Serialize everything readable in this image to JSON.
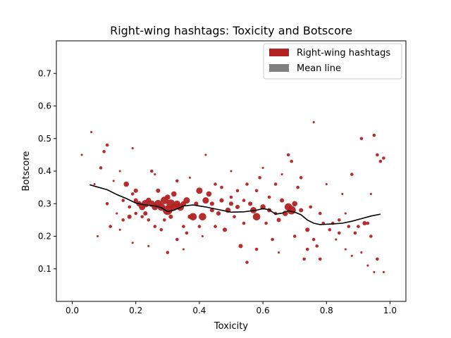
{
  "chart_data": {
    "type": "scatter",
    "title": "Right-wing hashtags: Toxicity and Botscore",
    "xlabel": "Toxicity",
    "ylabel": "Botscore",
    "xlim": [
      -0.05,
      1.05
    ],
    "ylim": [
      0.0,
      0.8
    ],
    "xticks": [
      0.0,
      0.2,
      0.4,
      0.6,
      0.8,
      1.0
    ],
    "xtick_labels": [
      "0.0",
      "0.2",
      "0.4",
      "0.6",
      "0.8",
      "1.0"
    ],
    "yticks": [
      0.1,
      0.2,
      0.3,
      0.4,
      0.5,
      0.6,
      0.7
    ],
    "ytick_labels": [
      "0.1",
      "0.2",
      "0.3",
      "0.4",
      "0.5",
      "0.6",
      "0.7"
    ],
    "grid": false,
    "legend_position": "top-right",
    "legend": [
      {
        "label": "Right-wing hashtags",
        "color": "#b22222"
      },
      {
        "label": "Mean line",
        "color": "#808080"
      }
    ],
    "series": [
      {
        "kind": "scatter",
        "color": "#b22222",
        "points": [
          {
            "x": 0.06,
            "y": 0.52,
            "s": 1
          },
          {
            "x": 0.1,
            "y": 0.46,
            "s": 2
          },
          {
            "x": 0.11,
            "y": 0.48,
            "s": 2
          },
          {
            "x": 0.07,
            "y": 0.36,
            "s": 1
          },
          {
            "x": 0.09,
            "y": 0.41,
            "s": 2
          },
          {
            "x": 0.08,
            "y": 0.2,
            "s": 1
          },
          {
            "x": 0.03,
            "y": 0.45,
            "s": 1
          },
          {
            "x": 0.11,
            "y": 0.3,
            "s": 2
          },
          {
            "x": 0.12,
            "y": 0.23,
            "s": 2
          },
          {
            "x": 0.13,
            "y": 0.37,
            "s": 1
          },
          {
            "x": 0.14,
            "y": 0.27,
            "s": 1
          },
          {
            "x": 0.15,
            "y": 0.4,
            "s": 1
          },
          {
            "x": 0.15,
            "y": 0.22,
            "s": 1
          },
          {
            "x": 0.16,
            "y": 0.31,
            "s": 2
          },
          {
            "x": 0.17,
            "y": 0.36,
            "s": 4
          },
          {
            "x": 0.18,
            "y": 0.29,
            "s": 2
          },
          {
            "x": 0.18,
            "y": 0.26,
            "s": 3
          },
          {
            "x": 0.19,
            "y": 0.47,
            "s": 1
          },
          {
            "x": 0.19,
            "y": 0.33,
            "s": 2
          },
          {
            "x": 0.2,
            "y": 0.31,
            "s": 3
          },
          {
            "x": 0.2,
            "y": 0.34,
            "s": 3
          },
          {
            "x": 0.21,
            "y": 0.3,
            "s": 4
          },
          {
            "x": 0.22,
            "y": 0.29,
            "s": 5
          },
          {
            "x": 0.23,
            "y": 0.3,
            "s": 6
          },
          {
            "x": 0.23,
            "y": 0.27,
            "s": 3
          },
          {
            "x": 0.24,
            "y": 0.31,
            "s": 4
          },
          {
            "x": 0.24,
            "y": 0.25,
            "s": 2
          },
          {
            "x": 0.25,
            "y": 0.3,
            "s": 5
          },
          {
            "x": 0.25,
            "y": 0.4,
            "s": 2
          },
          {
            "x": 0.26,
            "y": 0.29,
            "s": 5
          },
          {
            "x": 0.27,
            "y": 0.3,
            "s": 6
          },
          {
            "x": 0.27,
            "y": 0.34,
            "s": 3
          },
          {
            "x": 0.28,
            "y": 0.29,
            "s": 6
          },
          {
            "x": 0.28,
            "y": 0.22,
            "s": 2
          },
          {
            "x": 0.29,
            "y": 0.31,
            "s": 6
          },
          {
            "x": 0.3,
            "y": 0.28,
            "s": 8
          },
          {
            "x": 0.3,
            "y": 0.32,
            "s": 4
          },
          {
            "x": 0.31,
            "y": 0.3,
            "s": 7
          },
          {
            "x": 0.31,
            "y": 0.26,
            "s": 3
          },
          {
            "x": 0.32,
            "y": 0.29,
            "s": 6
          },
          {
            "x": 0.32,
            "y": 0.33,
            "s": 4
          },
          {
            "x": 0.33,
            "y": 0.3,
            "s": 5
          },
          {
            "x": 0.33,
            "y": 0.19,
            "s": 2
          },
          {
            "x": 0.34,
            "y": 0.29,
            "s": 6
          },
          {
            "x": 0.35,
            "y": 0.3,
            "s": 4
          },
          {
            "x": 0.35,
            "y": 0.23,
            "s": 2
          },
          {
            "x": 0.36,
            "y": 0.31,
            "s": 5
          },
          {
            "x": 0.37,
            "y": 0.26,
            "s": 3
          },
          {
            "x": 0.38,
            "y": 0.26,
            "s": 6
          },
          {
            "x": 0.39,
            "y": 0.3,
            "s": 3
          },
          {
            "x": 0.4,
            "y": 0.34,
            "s": 5
          },
          {
            "x": 0.41,
            "y": 0.26,
            "s": 6
          },
          {
            "x": 0.42,
            "y": 0.31,
            "s": 5
          },
          {
            "x": 0.42,
            "y": 0.45,
            "s": 1
          },
          {
            "x": 0.43,
            "y": 0.33,
            "s": 4
          },
          {
            "x": 0.44,
            "y": 0.3,
            "s": 3
          },
          {
            "x": 0.45,
            "y": 0.23,
            "s": 2
          },
          {
            "x": 0.46,
            "y": 0.27,
            "s": 3
          },
          {
            "x": 0.47,
            "y": 0.31,
            "s": 3
          },
          {
            "x": 0.48,
            "y": 0.22,
            "s": 3
          },
          {
            "x": 0.49,
            "y": 0.28,
            "s": 4
          },
          {
            "x": 0.5,
            "y": 0.32,
            "s": 2
          },
          {
            "x": 0.5,
            "y": 0.4,
            "s": 1
          },
          {
            "x": 0.51,
            "y": 0.26,
            "s": 2
          },
          {
            "x": 0.52,
            "y": 0.29,
            "s": 3
          },
          {
            "x": 0.53,
            "y": 0.17,
            "s": 3
          },
          {
            "x": 0.54,
            "y": 0.31,
            "s": 2
          },
          {
            "x": 0.55,
            "y": 0.36,
            "s": 2
          },
          {
            "x": 0.56,
            "y": 0.3,
            "s": 3
          },
          {
            "x": 0.57,
            "y": 0.28,
            "s": 5
          },
          {
            "x": 0.58,
            "y": 0.26,
            "s": 6
          },
          {
            "x": 0.59,
            "y": 0.38,
            "s": 2
          },
          {
            "x": 0.6,
            "y": 0.29,
            "s": 4
          },
          {
            "x": 0.61,
            "y": 0.24,
            "s": 2
          },
          {
            "x": 0.62,
            "y": 0.32,
            "s": 2
          },
          {
            "x": 0.63,
            "y": 0.19,
            "s": 2
          },
          {
            "x": 0.64,
            "y": 0.36,
            "s": 2
          },
          {
            "x": 0.65,
            "y": 0.25,
            "s": 3
          },
          {
            "x": 0.66,
            "y": 0.31,
            "s": 3
          },
          {
            "x": 0.67,
            "y": 0.27,
            "s": 4
          },
          {
            "x": 0.68,
            "y": 0.29,
            "s": 6
          },
          {
            "x": 0.69,
            "y": 0.28,
            "s": 7
          },
          {
            "x": 0.7,
            "y": 0.3,
            "s": 4
          },
          {
            "x": 0.68,
            "y": 0.45,
            "s": 2
          },
          {
            "x": 0.69,
            "y": 0.43,
            "s": 2
          },
          {
            "x": 0.71,
            "y": 0.35,
            "s": 2
          },
          {
            "x": 0.72,
            "y": 0.28,
            "s": 3
          },
          {
            "x": 0.73,
            "y": 0.13,
            "s": 2
          },
          {
            "x": 0.74,
            "y": 0.22,
            "s": 3
          },
          {
            "x": 0.75,
            "y": 0.29,
            "s": 2
          },
          {
            "x": 0.76,
            "y": 0.55,
            "s": 1
          },
          {
            "x": 0.77,
            "y": 0.17,
            "s": 2
          },
          {
            "x": 0.78,
            "y": 0.13,
            "s": 2
          },
          {
            "x": 0.79,
            "y": 0.24,
            "s": 2
          },
          {
            "x": 0.8,
            "y": 0.36,
            "s": 1
          },
          {
            "x": 0.81,
            "y": 0.22,
            "s": 2
          },
          {
            "x": 0.82,
            "y": 0.24,
            "s": 2
          },
          {
            "x": 0.83,
            "y": 0.19,
            "s": 1
          },
          {
            "x": 0.84,
            "y": 0.25,
            "s": 2
          },
          {
            "x": 0.85,
            "y": 0.33,
            "s": 1
          },
          {
            "x": 0.86,
            "y": 0.16,
            "s": 1
          },
          {
            "x": 0.87,
            "y": 0.23,
            "s": 2
          },
          {
            "x": 0.88,
            "y": 0.39,
            "s": 2
          },
          {
            "x": 0.89,
            "y": 0.21,
            "s": 2
          },
          {
            "x": 0.9,
            "y": 0.23,
            "s": 2
          },
          {
            "x": 0.91,
            "y": 0.5,
            "s": 2
          },
          {
            "x": 0.92,
            "y": 0.24,
            "s": 3
          },
          {
            "x": 0.93,
            "y": 0.24,
            "s": 2
          },
          {
            "x": 0.94,
            "y": 0.33,
            "s": 1
          },
          {
            "x": 0.95,
            "y": 0.51,
            "s": 2
          },
          {
            "x": 0.96,
            "y": 0.45,
            "s": 2
          },
          {
            "x": 0.97,
            "y": 0.43,
            "s": 2
          },
          {
            "x": 0.98,
            "y": 0.44,
            "s": 2
          },
          {
            "x": 0.96,
            "y": 0.13,
            "s": 2
          },
          {
            "x": 0.95,
            "y": 0.09,
            "s": 1
          },
          {
            "x": 0.93,
            "y": 0.11,
            "s": 1
          },
          {
            "x": 0.91,
            "y": 0.15,
            "s": 1
          },
          {
            "x": 0.94,
            "y": 0.2,
            "s": 2
          },
          {
            "x": 0.98,
            "y": 0.09,
            "s": 1
          },
          {
            "x": 0.19,
            "y": 0.18,
            "s": 1
          },
          {
            "x": 0.24,
            "y": 0.17,
            "s": 1
          },
          {
            "x": 0.3,
            "y": 0.15,
            "s": 2
          },
          {
            "x": 0.35,
            "y": 0.16,
            "s": 1
          },
          {
            "x": 0.41,
            "y": 0.2,
            "s": 1
          },
          {
            "x": 0.55,
            "y": 0.12,
            "s": 2
          },
          {
            "x": 0.58,
            "y": 0.16,
            "s": 2
          },
          {
            "x": 0.65,
            "y": 0.15,
            "s": 1
          },
          {
            "x": 0.74,
            "y": 0.16,
            "s": 2
          },
          {
            "x": 0.72,
            "y": 0.38,
            "s": 2
          },
          {
            "x": 0.26,
            "y": 0.39,
            "s": 1
          },
          {
            "x": 0.33,
            "y": 0.37,
            "s": 2
          },
          {
            "x": 0.37,
            "y": 0.38,
            "s": 1
          },
          {
            "x": 0.45,
            "y": 0.36,
            "s": 2
          },
          {
            "x": 0.6,
            "y": 0.41,
            "s": 1
          },
          {
            "x": 0.66,
            "y": 0.39,
            "s": 1
          },
          {
            "x": 0.16,
            "y": 0.25,
            "s": 2
          },
          {
            "x": 0.2,
            "y": 0.27,
            "s": 2
          },
          {
            "x": 0.22,
            "y": 0.26,
            "s": 2
          },
          {
            "x": 0.44,
            "y": 0.28,
            "s": 3
          },
          {
            "x": 0.5,
            "y": 0.3,
            "s": 3
          },
          {
            "x": 0.52,
            "y": 0.34,
            "s": 2
          },
          {
            "x": 0.62,
            "y": 0.28,
            "s": 3
          },
          {
            "x": 0.64,
            "y": 0.27,
            "s": 2
          },
          {
            "x": 0.78,
            "y": 0.27,
            "s": 2
          },
          {
            "x": 0.84,
            "y": 0.21,
            "s": 2
          },
          {
            "x": 0.86,
            "y": 0.27,
            "s": 1
          },
          {
            "x": 0.54,
            "y": 0.24,
            "s": 2
          },
          {
            "x": 0.58,
            "y": 0.34,
            "s": 2
          },
          {
            "x": 0.26,
            "y": 0.23,
            "s": 2
          },
          {
            "x": 0.29,
            "y": 0.25,
            "s": 2
          },
          {
            "x": 0.36,
            "y": 0.21,
            "s": 2
          },
          {
            "x": 0.4,
            "y": 0.23,
            "s": 2
          },
          {
            "x": 0.47,
            "y": 0.35,
            "s": 2
          },
          {
            "x": 0.7,
            "y": 0.2,
            "s": 2
          },
          {
            "x": 0.76,
            "y": 0.19,
            "s": 2
          },
          {
            "x": 0.88,
            "y": 0.14,
            "s": 1
          }
        ]
      },
      {
        "kind": "line",
        "color": "#000000",
        "x": [
          0.055,
          0.08,
          0.11,
          0.14,
          0.17,
          0.2,
          0.23,
          0.26,
          0.28,
          0.3,
          0.32,
          0.35,
          0.38,
          0.42,
          0.46,
          0.5,
          0.54,
          0.58,
          0.6,
          0.62,
          0.64,
          0.66,
          0.68,
          0.7,
          0.72,
          0.74,
          0.76,
          0.78,
          0.8,
          0.82,
          0.85,
          0.88,
          0.91,
          0.94,
          0.97
        ],
        "y": [
          0.358,
          0.351,
          0.343,
          0.328,
          0.316,
          0.302,
          0.296,
          0.293,
          0.288,
          0.276,
          0.28,
          0.293,
          0.296,
          0.29,
          0.282,
          0.274,
          0.275,
          0.28,
          0.285,
          0.281,
          0.268,
          0.271,
          0.278,
          0.274,
          0.266,
          0.25,
          0.24,
          0.236,
          0.237,
          0.238,
          0.24,
          0.246,
          0.254,
          0.262,
          0.268
        ]
      }
    ]
  }
}
